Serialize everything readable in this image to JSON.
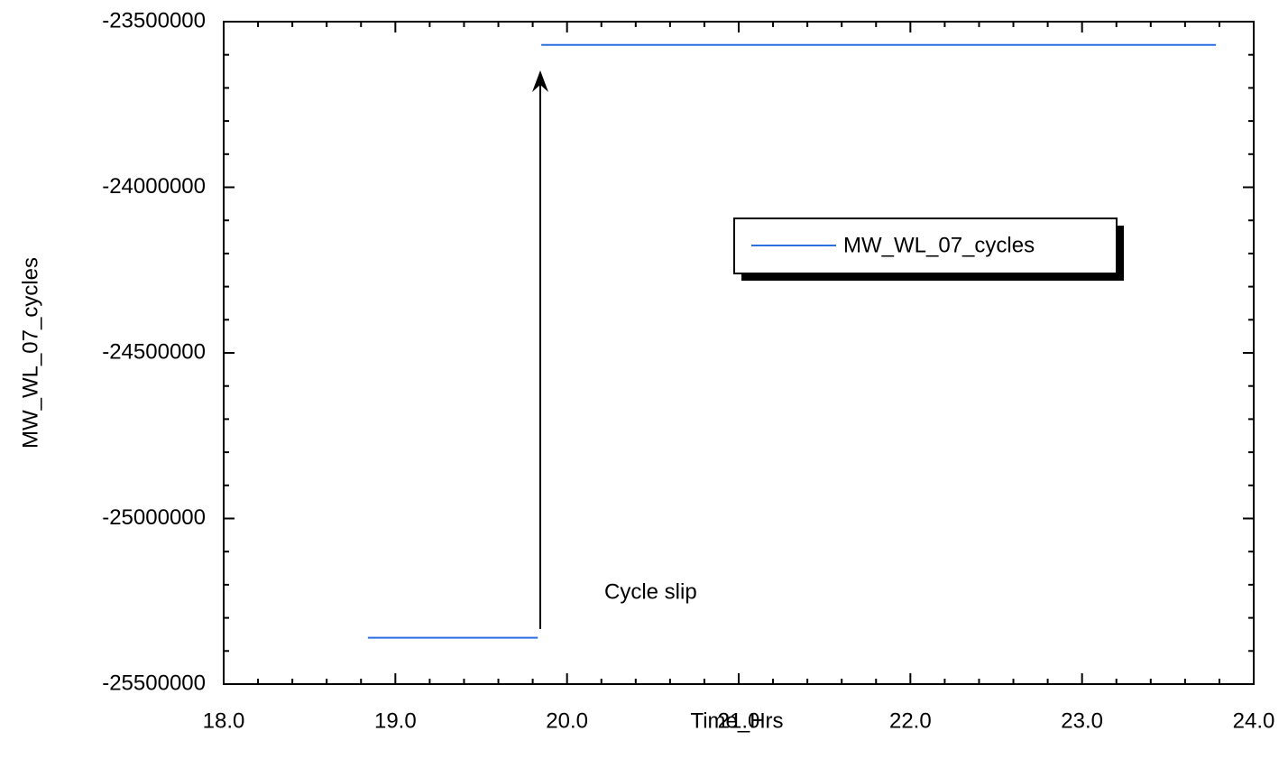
{
  "chart_data": {
    "type": "line",
    "x_label": "Time_Hrs",
    "y_label": "MW_WL_07_cycles",
    "annotation": "Cycle slip",
    "x": [
      18.84,
      19.83,
      19.84,
      19.85,
      23.78
    ],
    "series": [
      {
        "name": "MW_WL_07_cycles",
        "color": "#2b6fe3",
        "values": [
          -25360000,
          -25360000,
          null,
          -23570000,
          -23570000
        ]
      }
    ],
    "xlim": [
      18,
      24
    ],
    "xticks": [
      {
        "value": 18,
        "label": "18.0"
      },
      {
        "value": 19,
        "label": "19.0"
      },
      {
        "value": 20,
        "label": "20.0"
      },
      {
        "value": 21,
        "label": "21.0"
      },
      {
        "value": 22,
        "label": "22.0"
      },
      {
        "value": 23,
        "label": "23.0"
      },
      {
        "value": 24,
        "label": "24.0"
      }
    ],
    "ylim": [
      -25500000,
      -23500000
    ],
    "yticks": [
      -25500000,
      -25000000,
      -24500000,
      -24000000,
      -23500000
    ],
    "legend": "upper right"
  }
}
